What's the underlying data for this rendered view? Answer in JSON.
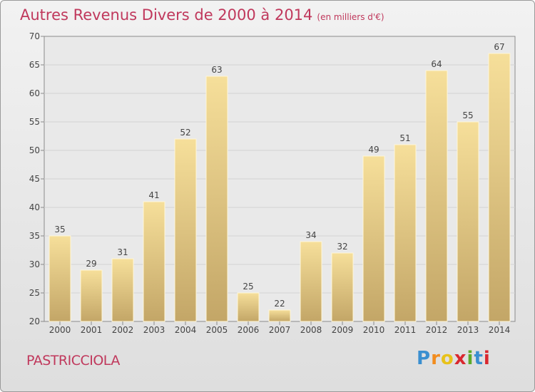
{
  "title": "Autres Revenus Divers de 2000 à 2014",
  "unit_label": "(en milliers d'€)",
  "commune": "PASTRICCIOLA",
  "logo": {
    "letters": [
      "P",
      "r",
      "o",
      "x",
      "i",
      "t",
      "i"
    ],
    "colors": [
      "#3a8fd0",
      "#f28c1e",
      "#e8c21a",
      "#d9282f",
      "#5dab2a",
      "#3a8fd0",
      "#d9282f"
    ]
  },
  "chart_data": {
    "type": "bar",
    "categories": [
      "2000",
      "2001",
      "2002",
      "2003",
      "2004",
      "2005",
      "2006",
      "2007",
      "2008",
      "2009",
      "2010",
      "2011",
      "2012",
      "2013",
      "2014"
    ],
    "values": [
      35,
      29,
      31,
      41,
      52,
      63,
      25,
      22,
      34,
      32,
      49,
      51,
      64,
      55,
      67
    ],
    "data_labels": [
      "35",
      "29",
      "31",
      "41",
      "52",
      "63",
      "25",
      "22",
      "34",
      "32",
      "49",
      "51",
      "64",
      "55",
      "67"
    ],
    "ylim": [
      20,
      70
    ],
    "yticks": [
      "20",
      "25",
      "30",
      "35",
      "40",
      "45",
      "50",
      "55",
      "60",
      "65",
      "70"
    ],
    "grid": true,
    "bar_color_light": "#f6df9a",
    "bar_color_dark": "#c3a667"
  }
}
